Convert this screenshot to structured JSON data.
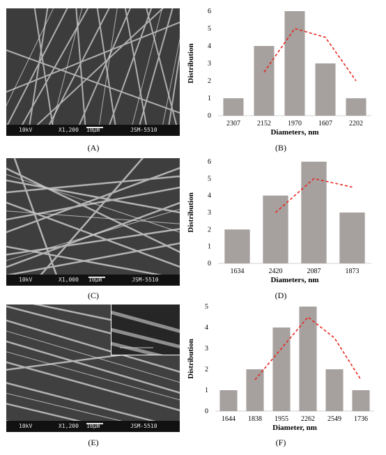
{
  "panels": [
    {
      "id": "A",
      "label": "(A)",
      "sem": {
        "kv": "10kV",
        "mag": "X1,200",
        "scale": "10μm",
        "instrument": "JSM-5510"
      }
    },
    {
      "id": "B",
      "label": "(B)"
    },
    {
      "id": "C",
      "label": "(C)",
      "sem": {
        "kv": "10kV",
        "mag": "X1,000",
        "scale": "10μm",
        "instrument": "JSM-5510"
      }
    },
    {
      "id": "D",
      "label": "(D)"
    },
    {
      "id": "E",
      "label": "(E)",
      "sem": {
        "kv": "10kV",
        "mag": "X1,200",
        "scale": "10μm",
        "instrument": "JSM-5510"
      }
    },
    {
      "id": "F",
      "label": "(F)"
    }
  ],
  "colors": {
    "bar": "#a6a09e",
    "trend": "#e8251f",
    "sem_bg": "#4a4a4a",
    "fiber": "#bcbcbc"
  },
  "chart_data": [
    {
      "type": "bar",
      "panel": "B",
      "categories": [
        "2307",
        "2152",
        "1970",
        "1607",
        "2202"
      ],
      "values": [
        1,
        4,
        6,
        3,
        1
      ],
      "trend": {
        "type": "line",
        "style": "dashed",
        "x": [
          "2152",
          "1970",
          "1607",
          "2202"
        ],
        "values": [
          2.5,
          5,
          4.5,
          2
        ]
      },
      "xlabel": "Diameters, nm",
      "ylabel": "Distribution",
      "ylim": [
        0,
        6
      ],
      "yticks": [
        0,
        1,
        2,
        3,
        4,
        5,
        6
      ],
      "grid": false
    },
    {
      "type": "bar",
      "panel": "D",
      "categories": [
        "1634",
        "2420",
        "2087",
        "1873"
      ],
      "values": [
        2,
        4,
        6,
        3
      ],
      "trend": {
        "type": "line",
        "style": "dashed",
        "x": [
          "2420",
          "2087",
          "1873"
        ],
        "values": [
          3,
          5,
          4.5
        ]
      },
      "xlabel": "Diameters, nm",
      "ylabel": "Distribution",
      "ylim": [
        0,
        6
      ],
      "yticks": [
        0,
        1,
        2,
        3,
        4,
        5,
        6
      ],
      "grid": false
    },
    {
      "type": "bar",
      "panel": "F",
      "categories": [
        "1644",
        "1838",
        "1955",
        "2262",
        "2549",
        "1736"
      ],
      "values": [
        1,
        2,
        4,
        5,
        2,
        1
      ],
      "trend": {
        "type": "line",
        "style": "dashed",
        "x": [
          "1838",
          "1955",
          "2262",
          "2549",
          "1736"
        ],
        "values": [
          1.5,
          3,
          4.5,
          3.5,
          1.5
        ]
      },
      "xlabel": "Diameter, nm",
      "ylabel": "Distribution",
      "ylim": [
        0,
        5
      ],
      "yticks": [
        0,
        1,
        2,
        3,
        4,
        5
      ],
      "grid": false
    }
  ]
}
